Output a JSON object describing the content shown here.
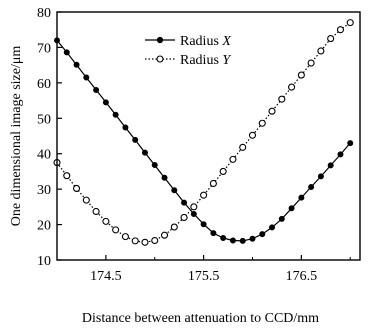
{
  "chart_data": {
    "type": "line",
    "xlabel": "Distance between attenuation to CCD/mm",
    "ylabel": "One dimensional image size/μm",
    "xlim": [
      174.0,
      177.1
    ],
    "ylim": [
      10,
      80
    ],
    "x_ticks": [
      174.5,
      175.5,
      176.5
    ],
    "x_tick_labels": [
      "174.5",
      "175.5",
      "176.5"
    ],
    "y_ticks": [
      10,
      20,
      30,
      40,
      50,
      60,
      70,
      80
    ],
    "y_tick_labels": [
      "10",
      "20",
      "30",
      "40",
      "50",
      "60",
      "70",
      "80"
    ],
    "grid": false,
    "legend_position": "top-center",
    "series": [
      {
        "name": "Radius X",
        "name_prefix": "Radius ",
        "name_var": "X",
        "marker": "filled-circle",
        "line_style": "solid",
        "x": [
          174.0,
          174.1,
          174.2,
          174.3,
          174.4,
          174.5,
          174.6,
          174.7,
          174.8,
          174.9,
          175.0,
          175.1,
          175.2,
          175.3,
          175.4,
          175.5,
          175.6,
          175.7,
          175.8,
          175.9,
          176.0,
          176.1,
          176.2,
          176.3,
          176.4,
          176.5,
          176.6,
          176.7,
          176.8,
          176.9,
          177.0
        ],
        "y": [
          72.0,
          68.6,
          65.1,
          61.5,
          58.0,
          54.5,
          51.0,
          47.4,
          43.9,
          40.3,
          36.8,
          33.2,
          29.7,
          26.2,
          23.0,
          20.1,
          17.6,
          16.2,
          15.5,
          15.4,
          16.0,
          17.3,
          19.2,
          21.6,
          24.6,
          27.6,
          30.6,
          33.6,
          36.7,
          39.8,
          43.0
        ]
      },
      {
        "name": "Radius Y",
        "name_prefix": "Radius ",
        "name_var": "Y",
        "marker": "open-circle",
        "line_style": "dotted",
        "x": [
          174.0,
          174.1,
          174.2,
          174.3,
          174.4,
          174.5,
          174.6,
          174.7,
          174.8,
          174.9,
          175.0,
          175.1,
          175.2,
          175.3,
          175.4,
          175.5,
          175.6,
          175.7,
          175.8,
          175.9,
          176.0,
          176.1,
          176.2,
          176.3,
          176.4,
          176.5,
          176.6,
          176.7,
          176.8,
          176.9,
          177.0
        ],
        "y": [
          37.5,
          33.8,
          30.2,
          26.9,
          23.7,
          20.9,
          18.5,
          16.6,
          15.4,
          15.0,
          15.5,
          17.0,
          19.3,
          22.0,
          25.0,
          28.3,
          31.6,
          35.0,
          38.4,
          41.8,
          45.2,
          48.6,
          52.0,
          55.4,
          58.8,
          62.2,
          65.6,
          69.0,
          72.5,
          75.0,
          77.0
        ]
      }
    ]
  }
}
